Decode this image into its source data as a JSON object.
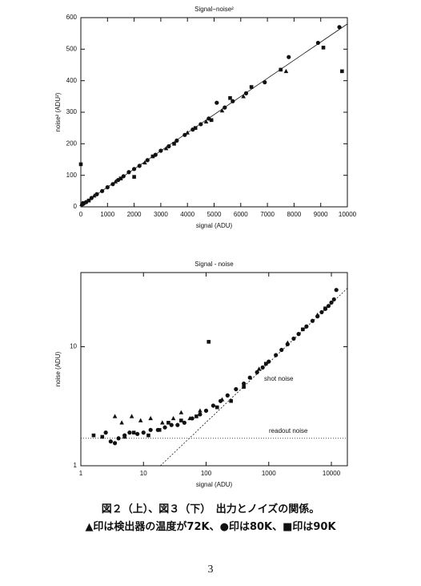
{
  "chart_data": [
    {
      "type": "scatter",
      "title": "Signal−noise²",
      "x_label": "signal (ADU)",
      "y_label": "noise² (ADU²)",
      "xlim": [
        0,
        10000
      ],
      "ylim": [
        0,
        600
      ],
      "xticks": [
        0,
        1000,
        2000,
        3000,
        4000,
        5000,
        6000,
        7000,
        8000,
        9000,
        10000
      ],
      "yticks": [
        0,
        100,
        200,
        300,
        400,
        500,
        600
      ],
      "series": [
        {
          "marker": "circle",
          "color": "#111111",
          "x": [
            50,
            100,
            200,
            400,
            600,
            800,
            1000,
            1200,
            1400,
            1600,
            1800,
            2000,
            2200,
            2500,
            2800,
            3000,
            3300,
            3600,
            3900,
            4200,
            4500,
            4800,
            5100,
            5400,
            5700,
            6200,
            6900,
            7800,
            8900,
            9700
          ],
          "values": [
            8,
            10,
            15,
            28,
            40,
            50,
            62,
            72,
            85,
            97,
            110,
            120,
            130,
            148,
            165,
            178,
            192,
            210,
            228,
            245,
            262,
            280,
            330,
            315,
            335,
            360,
            395,
            475,
            520,
            570
          ]
        },
        {
          "marker": "square",
          "color": "#111111",
          "x": [
            0,
            100,
            300,
            1500,
            2000,
            2700,
            3500,
            4300,
            4900,
            5600,
            6400,
            7500,
            9100,
            9800
          ],
          "values": [
            135,
            12,
            20,
            90,
            95,
            160,
            200,
            250,
            275,
            345,
            380,
            435,
            505,
            430
          ]
        },
        {
          "marker": "triangle",
          "color": "#111111",
          "x": [
            30,
            500,
            1300,
            2400,
            3200,
            4000,
            4700,
            5300,
            6100,
            7700
          ],
          "values": [
            8,
            35,
            80,
            140,
            185,
            235,
            270,
            305,
            350,
            430
          ]
        }
      ],
      "lines": [
        {
          "x": [
            0,
            10000
          ],
          "values": [
            5,
            580
          ],
          "dash": "none"
        }
      ]
    },
    {
      "type": "scatter",
      "title": "Signal - noise",
      "x_label": "signal (ADU)",
      "y_label": "noise (ADU)",
      "log_scale": true,
      "xlim": [
        1,
        18000
      ],
      "ylim": [
        1,
        42
      ],
      "xticks": [
        1,
        10,
        100,
        1000,
        10000
      ],
      "yticks": [
        1,
        10
      ],
      "series": [
        {
          "marker": "circle",
          "color": "#111111",
          "x": [
            2.5,
            3,
            3.5,
            4,
            5,
            6,
            8,
            10,
            13,
            17,
            22,
            28,
            35,
            45,
            60,
            80,
            100,
            130,
            170,
            220,
            300,
            400,
            500,
            650,
            800,
            1000,
            1300,
            1600,
            2000,
            2500,
            3000,
            4000,
            5000,
            6000,
            7000,
            8000,
            9000,
            10000,
            11000,
            12000
          ],
          "values": [
            1.9,
            1.6,
            1.55,
            1.7,
            1.8,
            1.9,
            1.85,
            1.9,
            2.0,
            2.0,
            2.1,
            2.2,
            2.2,
            2.3,
            2.5,
            2.7,
            2.9,
            3.2,
            3.5,
            3.9,
            4.4,
            4.9,
            5.5,
            6.1,
            6.7,
            7.5,
            8.5,
            9.4,
            10.5,
            11.7,
            12.8,
            14.8,
            16.5,
            18.0,
            19.5,
            20.8,
            22.0,
            23.5,
            25,
            30
          ]
        },
        {
          "marker": "square",
          "color": "#111111",
          "x": [
            1.6,
            2.2,
            5,
            7,
            12,
            18,
            25,
            40,
            70,
            110,
            150,
            250,
            400,
            900,
            3500,
            8000
          ],
          "values": [
            1.8,
            1.75,
            1.75,
            1.9,
            1.8,
            2.0,
            2.3,
            2.4,
            2.6,
            11,
            3.1,
            3.5,
            4.6,
            7.2,
            14,
            21
          ]
        },
        {
          "marker": "triangle",
          "color": "#111111",
          "x": [
            3.5,
            4.5,
            6.5,
            9,
            13,
            20,
            30,
            40,
            55,
            80,
            180,
            700,
            2000,
            6000
          ],
          "values": [
            2.6,
            2.3,
            2.6,
            2.4,
            2.5,
            2.3,
            2.5,
            2.8,
            2.5,
            2.9,
            3.6,
            6.5,
            10.8,
            18.5
          ]
        }
      ],
      "lines": [
        {
          "name": "shot noise",
          "x": [
            18.6,
            18000
          ],
          "values": [
            1,
            31
          ],
          "dash": "2,2"
        },
        {
          "name": "readout noise",
          "x": [
            1,
            18000
          ],
          "values": [
            1.7,
            1.7
          ],
          "dash": "1,2"
        }
      ]
    }
  ],
  "caption": [
    "図２（上）、図３（下）　出力とノイズの関係。",
    "▲印は検出器の温度が72K、●印は80K、■印は90K"
  ],
  "page_number": "3"
}
